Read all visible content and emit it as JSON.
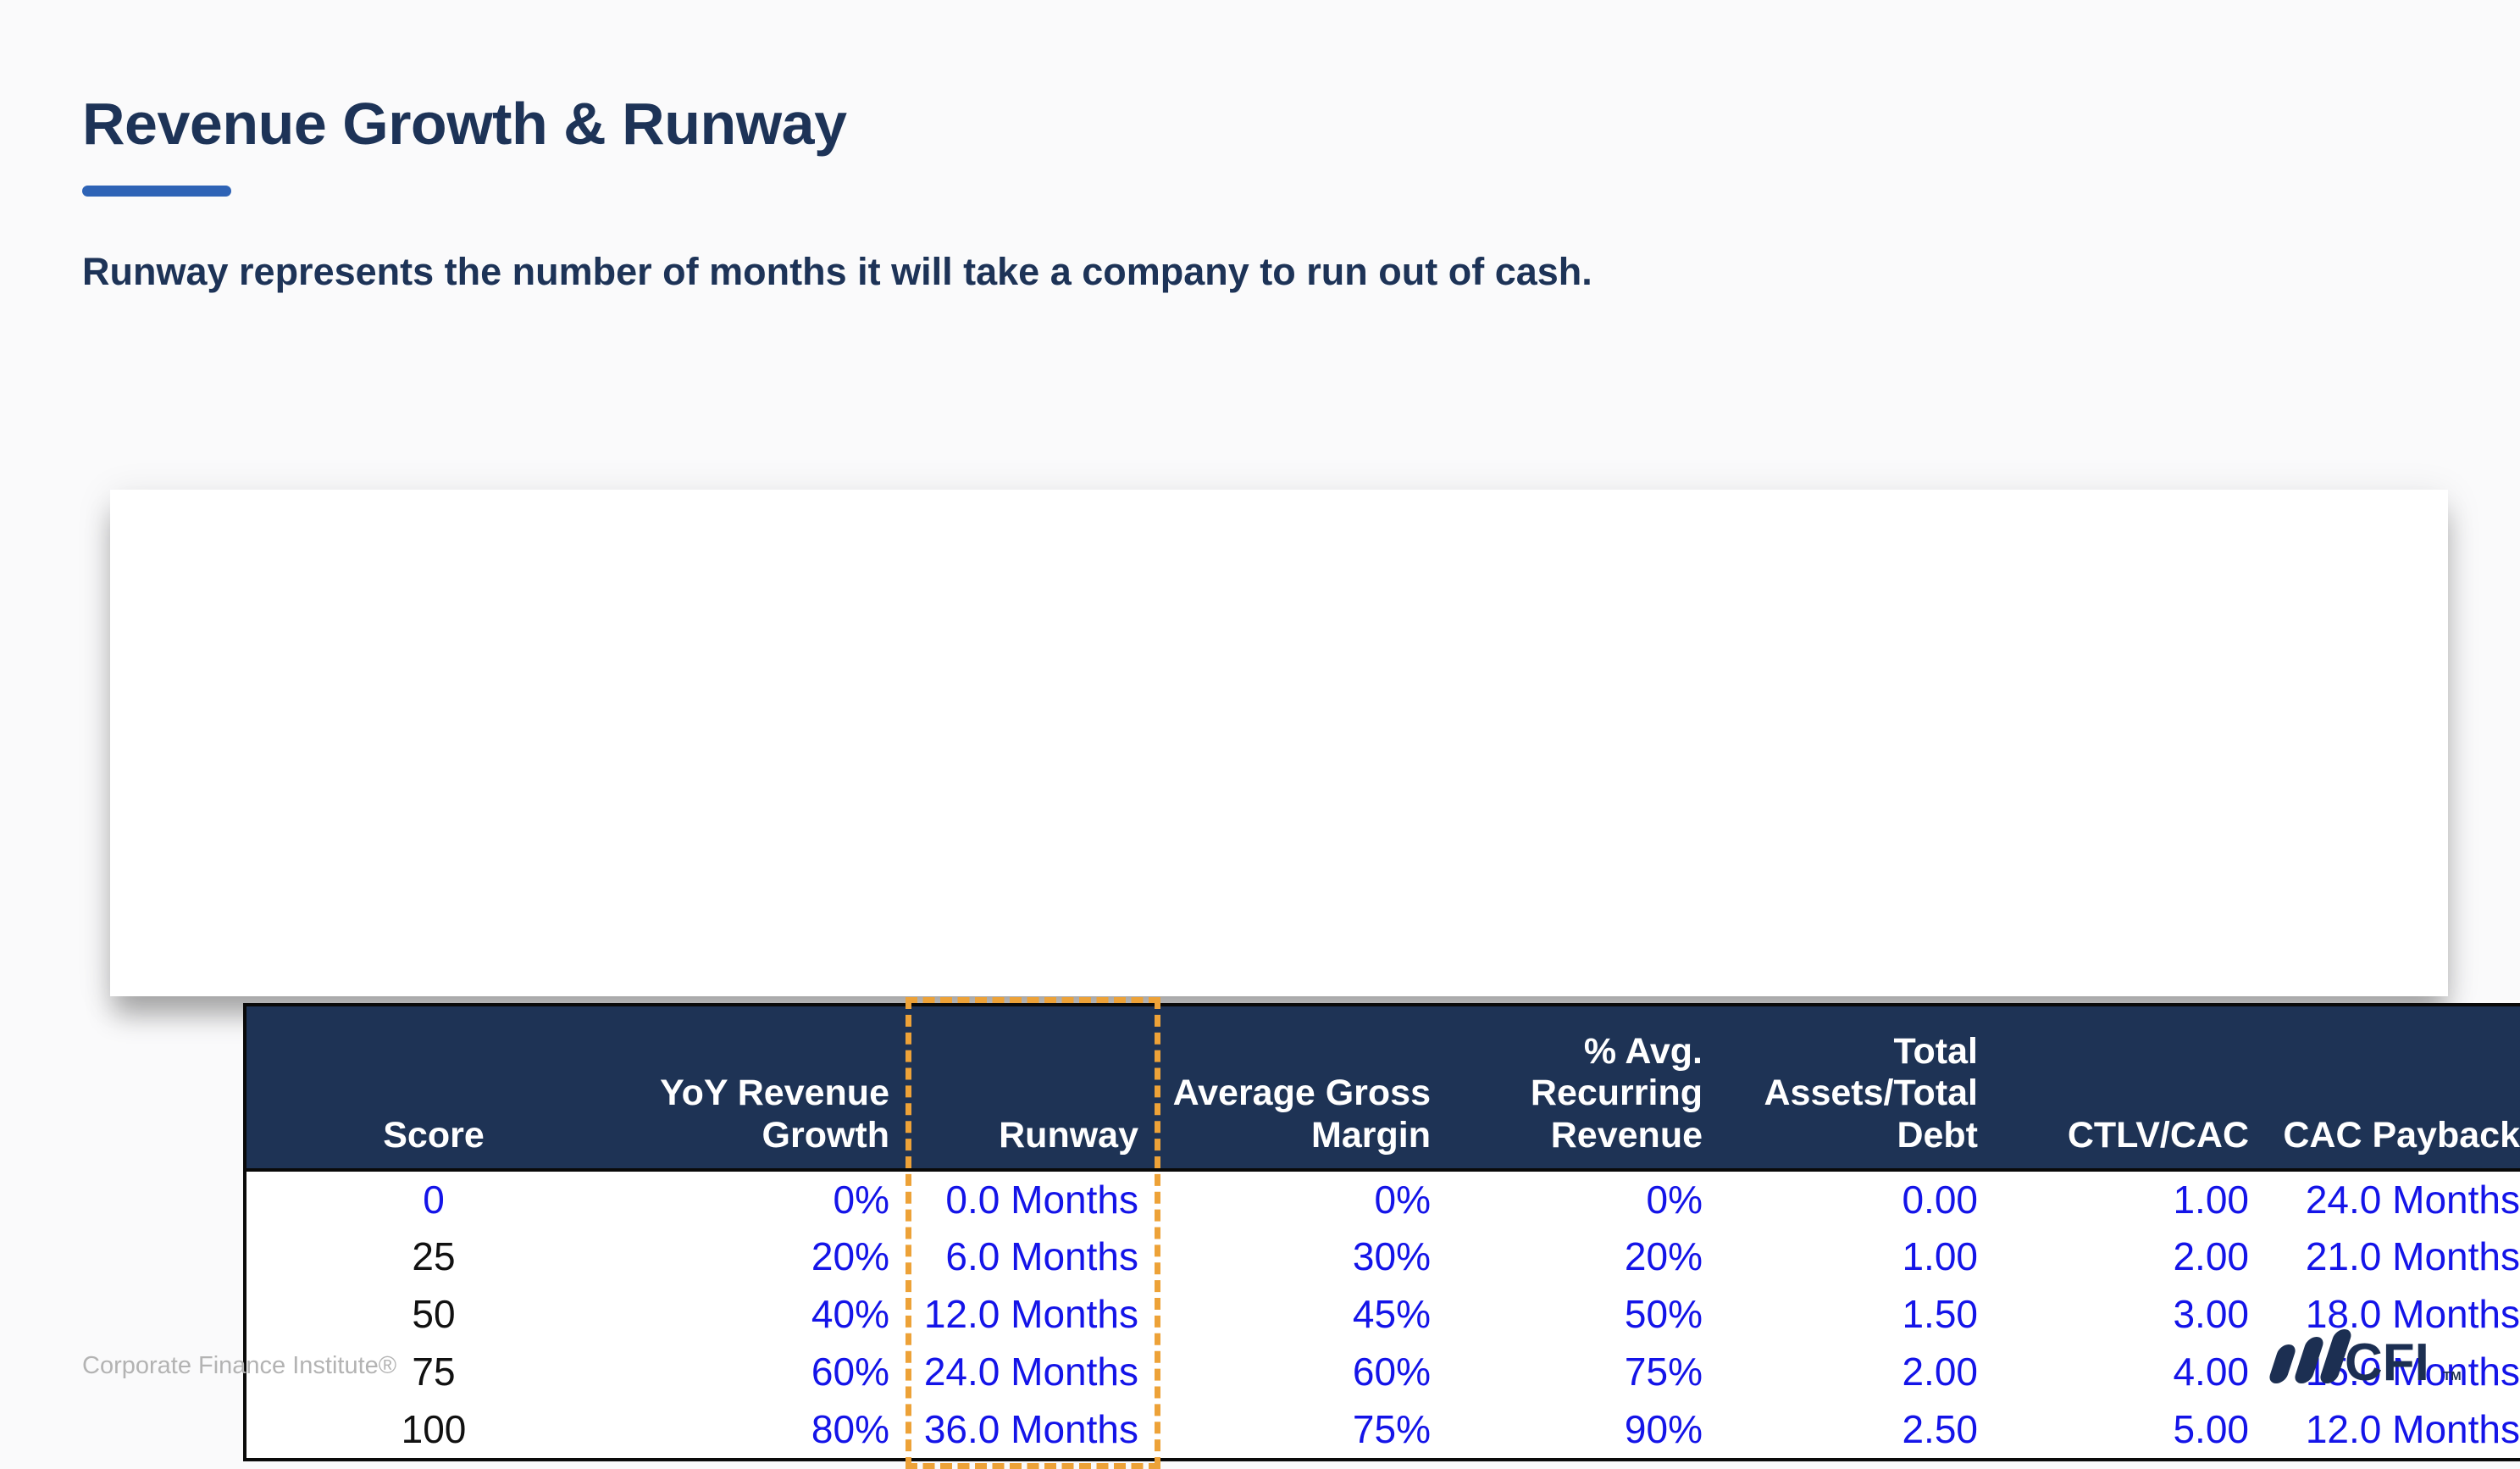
{
  "slide": {
    "title": "Revenue Growth & Runway",
    "subtitle": "Runway represents the number of months it will take a company to run out of cash.",
    "footer": "Corporate Finance Institute®",
    "logo_text": "CFI",
    "logo_tm": "TM"
  },
  "colors": {
    "title_navy": "#1d3357",
    "accent_blue": "#2e63b6",
    "header_bg": "#1e3355",
    "header_text": "#ffffff",
    "value_blue": "#1414e8",
    "value_black": "#111111",
    "highlight_orange": "#eda238",
    "footer_gray": "#b3b3b3",
    "logo_navy": "#1c2f52",
    "table_border": "#0a0a0a",
    "background": "#fafafb",
    "card_bg": "#ffffff"
  },
  "table": {
    "highlighted_column": "Runway",
    "columns": [
      {
        "label": "Score"
      },
      {
        "label": "YoY Revenue\nGrowth"
      },
      {
        "label": "Runway"
      },
      {
        "label": "Average Gross\nMargin"
      },
      {
        "label": "% Avg.\nRecurring\nRevenue"
      },
      {
        "label": "Total\nAssets/Total\nDebt"
      },
      {
        "label": "CTLV/CAC"
      },
      {
        "label": "CAC Payback"
      }
    ],
    "rows": [
      [
        "0",
        "0%",
        "0.0 Months",
        "0%",
        "0%",
        "0.00",
        "1.00",
        "24.0 Months"
      ],
      [
        "25",
        "20%",
        "6.0 Months",
        "30%",
        "20%",
        "1.00",
        "2.00",
        "21.0 Months"
      ],
      [
        "50",
        "40%",
        "12.0 Months",
        "45%",
        "50%",
        "1.50",
        "3.00",
        "18.0 Months"
      ],
      [
        "75",
        "60%",
        "24.0 Months",
        "60%",
        "75%",
        "2.00",
        "4.00",
        "15.0 Months"
      ],
      [
        "100",
        "80%",
        "36.0 Months",
        "75%",
        "90%",
        "2.50",
        "5.00",
        "12.0 Months"
      ]
    ]
  }
}
